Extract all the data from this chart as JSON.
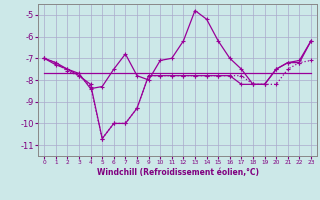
{
  "xlabel": "Windchill (Refroidissement éolien,°C)",
  "background_color": "#cce8e8",
  "grid_color": "#aaaacc",
  "line_color": "#990099",
  "x_values": [
    0,
    1,
    2,
    3,
    4,
    5,
    6,
    7,
    8,
    9,
    10,
    11,
    12,
    13,
    14,
    15,
    16,
    17,
    18,
    19,
    20,
    21,
    22,
    23
  ],
  "line1": [
    -7.0,
    -7.2,
    -7.5,
    -7.7,
    -8.4,
    -8.3,
    -7.5,
    -6.8,
    -7.8,
    -8.0,
    -7.1,
    -7.0,
    -6.2,
    -4.8,
    -5.2,
    -6.2,
    -7.0,
    -7.5,
    -8.2,
    -8.2,
    -7.5,
    -7.2,
    -7.1,
    -6.2
  ],
  "line2": [
    -7.0,
    -7.2,
    -7.6,
    -7.8,
    -8.3,
    -10.7,
    -10.0,
    -10.0,
    -9.3,
    -7.8,
    -7.8,
    -7.8,
    -7.8,
    -7.8,
    -7.8,
    -7.8,
    -7.8,
    -7.8,
    -8.2,
    -8.2,
    -8.2,
    -7.5,
    -7.2,
    -7.1
  ],
  "line3": [
    -7.7,
    -7.7,
    -7.7,
    -7.7,
    -7.7,
    -7.7,
    -7.7,
    -7.7,
    -7.7,
    -7.7,
    -7.7,
    -7.7,
    -7.7,
    -7.7,
    -7.7,
    -7.7,
    -7.7,
    -7.7,
    -7.7,
    -7.7,
    -7.7,
    -7.7,
    -7.7,
    -7.7
  ],
  "line4": [
    -7.0,
    -7.3,
    -7.5,
    -7.8,
    -8.2,
    -10.7,
    -10.0,
    -10.0,
    -9.3,
    -7.8,
    -7.8,
    -7.8,
    -7.8,
    -7.8,
    -7.8,
    -7.8,
    -7.8,
    -8.2,
    -8.2,
    -8.2,
    -7.5,
    -7.2,
    -7.2,
    -6.2
  ],
  "ylim": [
    -11.5,
    -4.5
  ],
  "yticks": [
    -11,
    -10,
    -9,
    -8,
    -7,
    -6,
    -5
  ],
  "xticks": [
    0,
    1,
    2,
    3,
    4,
    5,
    6,
    7,
    8,
    9,
    10,
    11,
    12,
    13,
    14,
    15,
    16,
    17,
    18,
    19,
    20,
    21,
    22,
    23
  ]
}
